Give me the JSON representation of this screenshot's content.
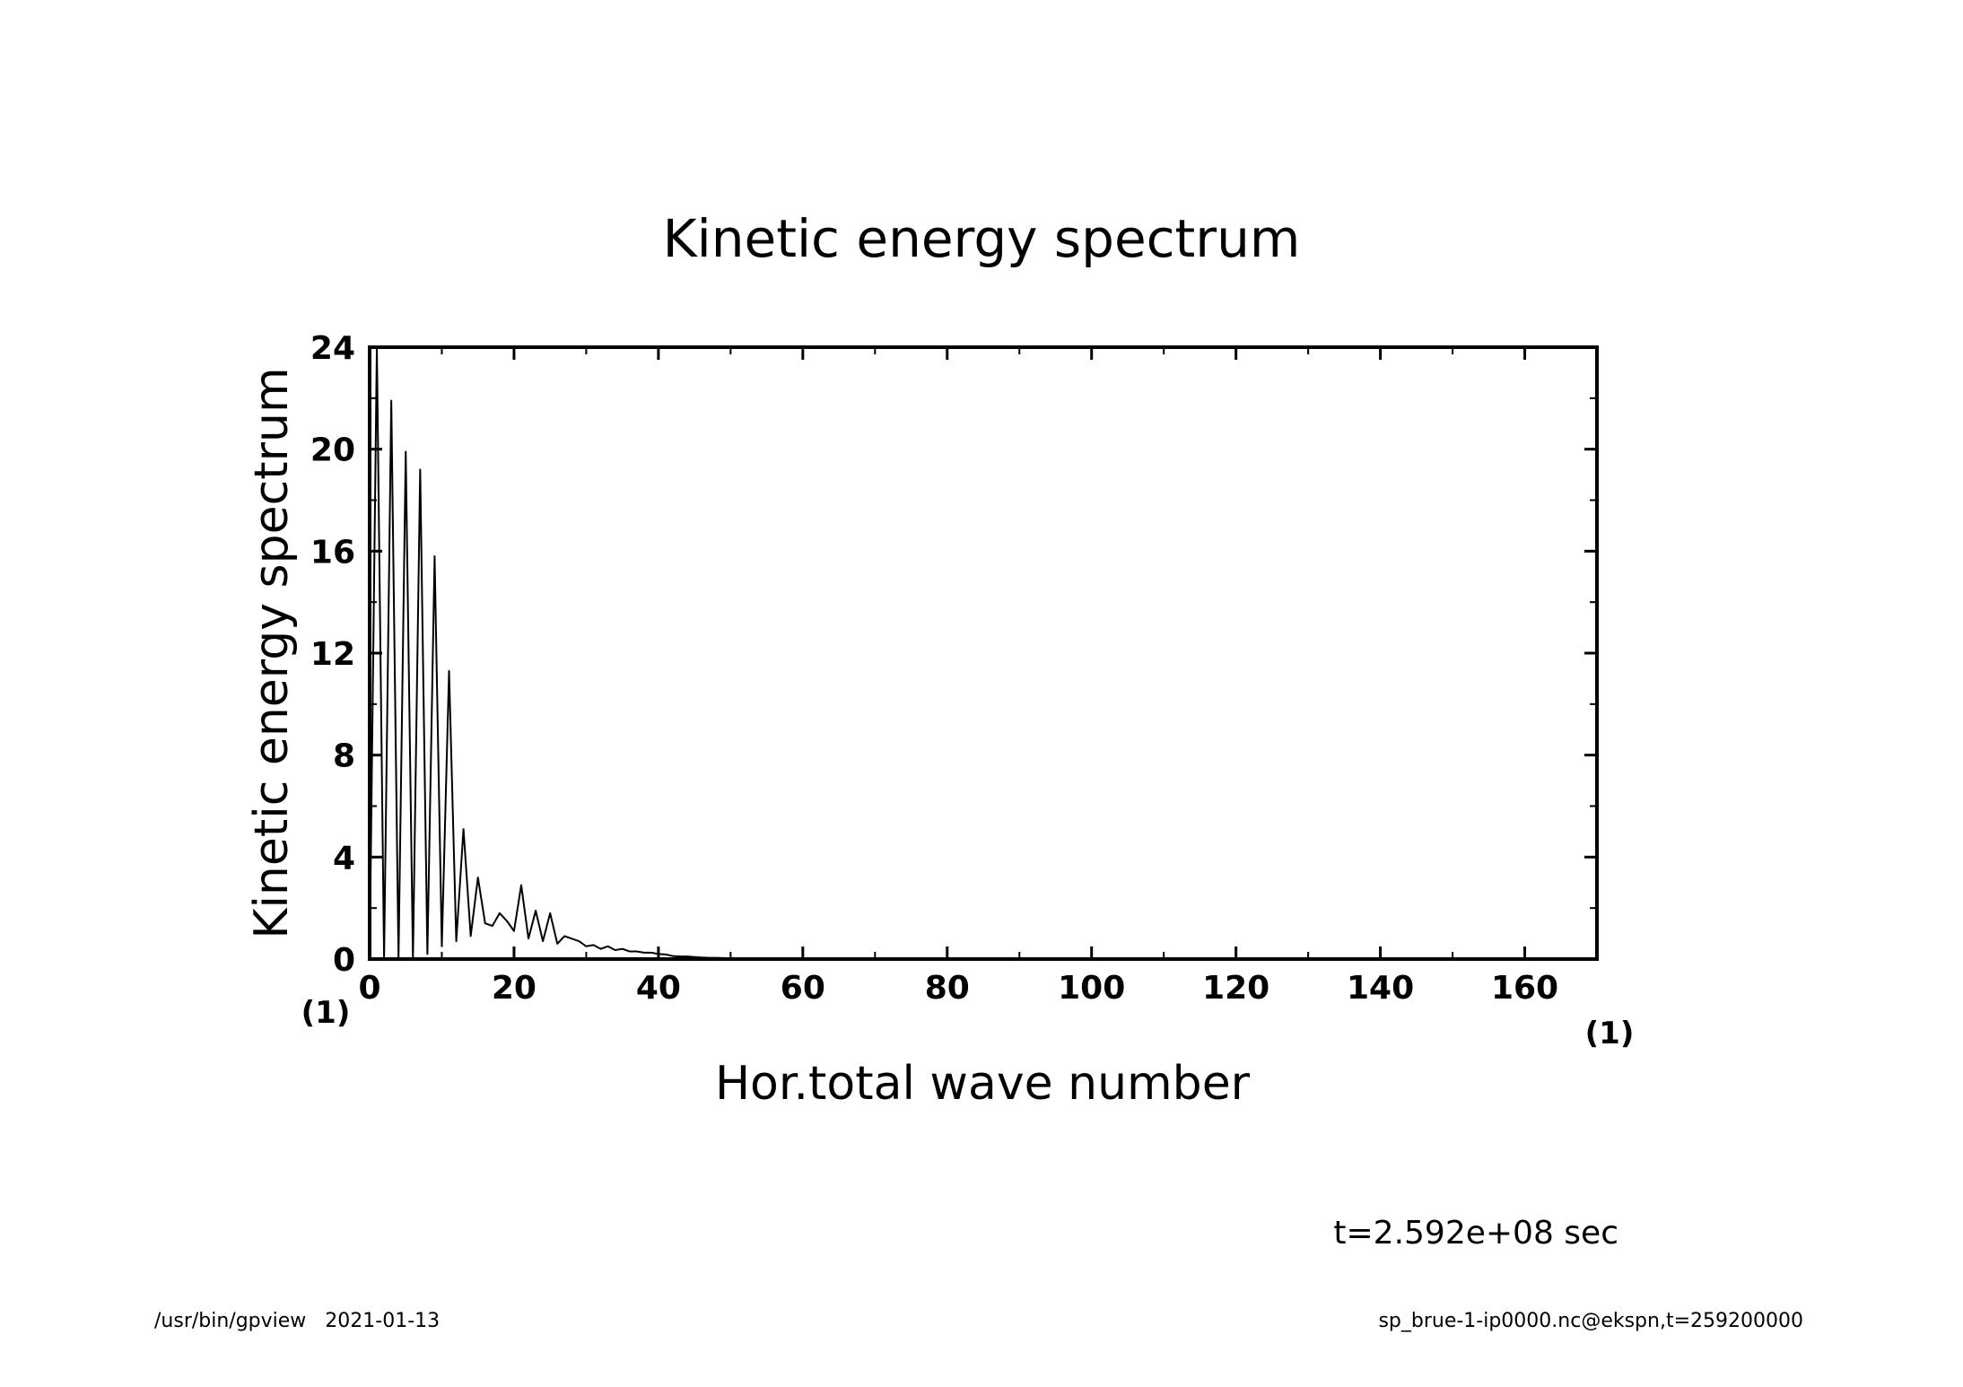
{
  "chart_data": {
    "type": "line",
    "title": "Kinetic energy spectrum",
    "xlabel": "Hor.total wave number",
    "ylabel": "Kinetic energy spectrum",
    "x_unit": "(1)",
    "y_unit": "(1)",
    "xlim": [
      0,
      170
    ],
    "ylim": [
      0,
      24
    ],
    "x_ticks": [
      0,
      20,
      40,
      60,
      80,
      100,
      120,
      140,
      160
    ],
    "y_ticks": [
      0,
      4,
      8,
      12,
      16,
      20,
      24
    ],
    "grid": false,
    "series": [
      {
        "name": "Kinetic energy spectrum",
        "x": [
          0,
          1,
          2,
          3,
          4,
          5,
          6,
          7,
          8,
          9,
          10,
          11,
          12,
          13,
          14,
          15,
          16,
          17,
          18,
          19,
          20,
          21,
          22,
          23,
          24,
          25,
          26,
          27,
          28,
          29,
          30,
          31,
          32,
          33,
          34,
          35,
          36,
          37,
          38,
          39,
          40,
          41,
          42,
          43,
          44,
          45,
          46,
          47,
          48,
          49,
          50,
          52,
          54,
          56,
          58,
          60,
          65,
          70,
          80,
          90,
          100,
          110,
          120,
          130,
          140,
          150,
          160,
          170
        ],
        "y": [
          0,
          24,
          0,
          21.9,
          0,
          19.9,
          0,
          19.2,
          0.2,
          15.8,
          0.5,
          11.3,
          0.7,
          5.1,
          0.9,
          3.2,
          1.4,
          1.3,
          1.8,
          1.5,
          1.1,
          2.9,
          0.8,
          1.9,
          0.7,
          1.8,
          0.6,
          0.9,
          0.8,
          0.7,
          0.5,
          0.55,
          0.4,
          0.5,
          0.35,
          0.4,
          0.3,
          0.3,
          0.25,
          0.25,
          0.2,
          0.18,
          0.12,
          0.1,
          0.1,
          0.08,
          0.06,
          0.05,
          0.05,
          0.04,
          0.03,
          0.02,
          0.02,
          0.01,
          0.01,
          0.01,
          0.005,
          0.003,
          0.002,
          0.001,
          0.001,
          0,
          0,
          0,
          0,
          0,
          0,
          0
        ]
      }
    ]
  },
  "annotation": {
    "time": "t=2.592e+08 sec"
  },
  "footer": {
    "left": "/usr/bin/gpview   2021-01-13",
    "right": "sp_brue-1-ip0000.nc@ekspn,t=259200000"
  }
}
